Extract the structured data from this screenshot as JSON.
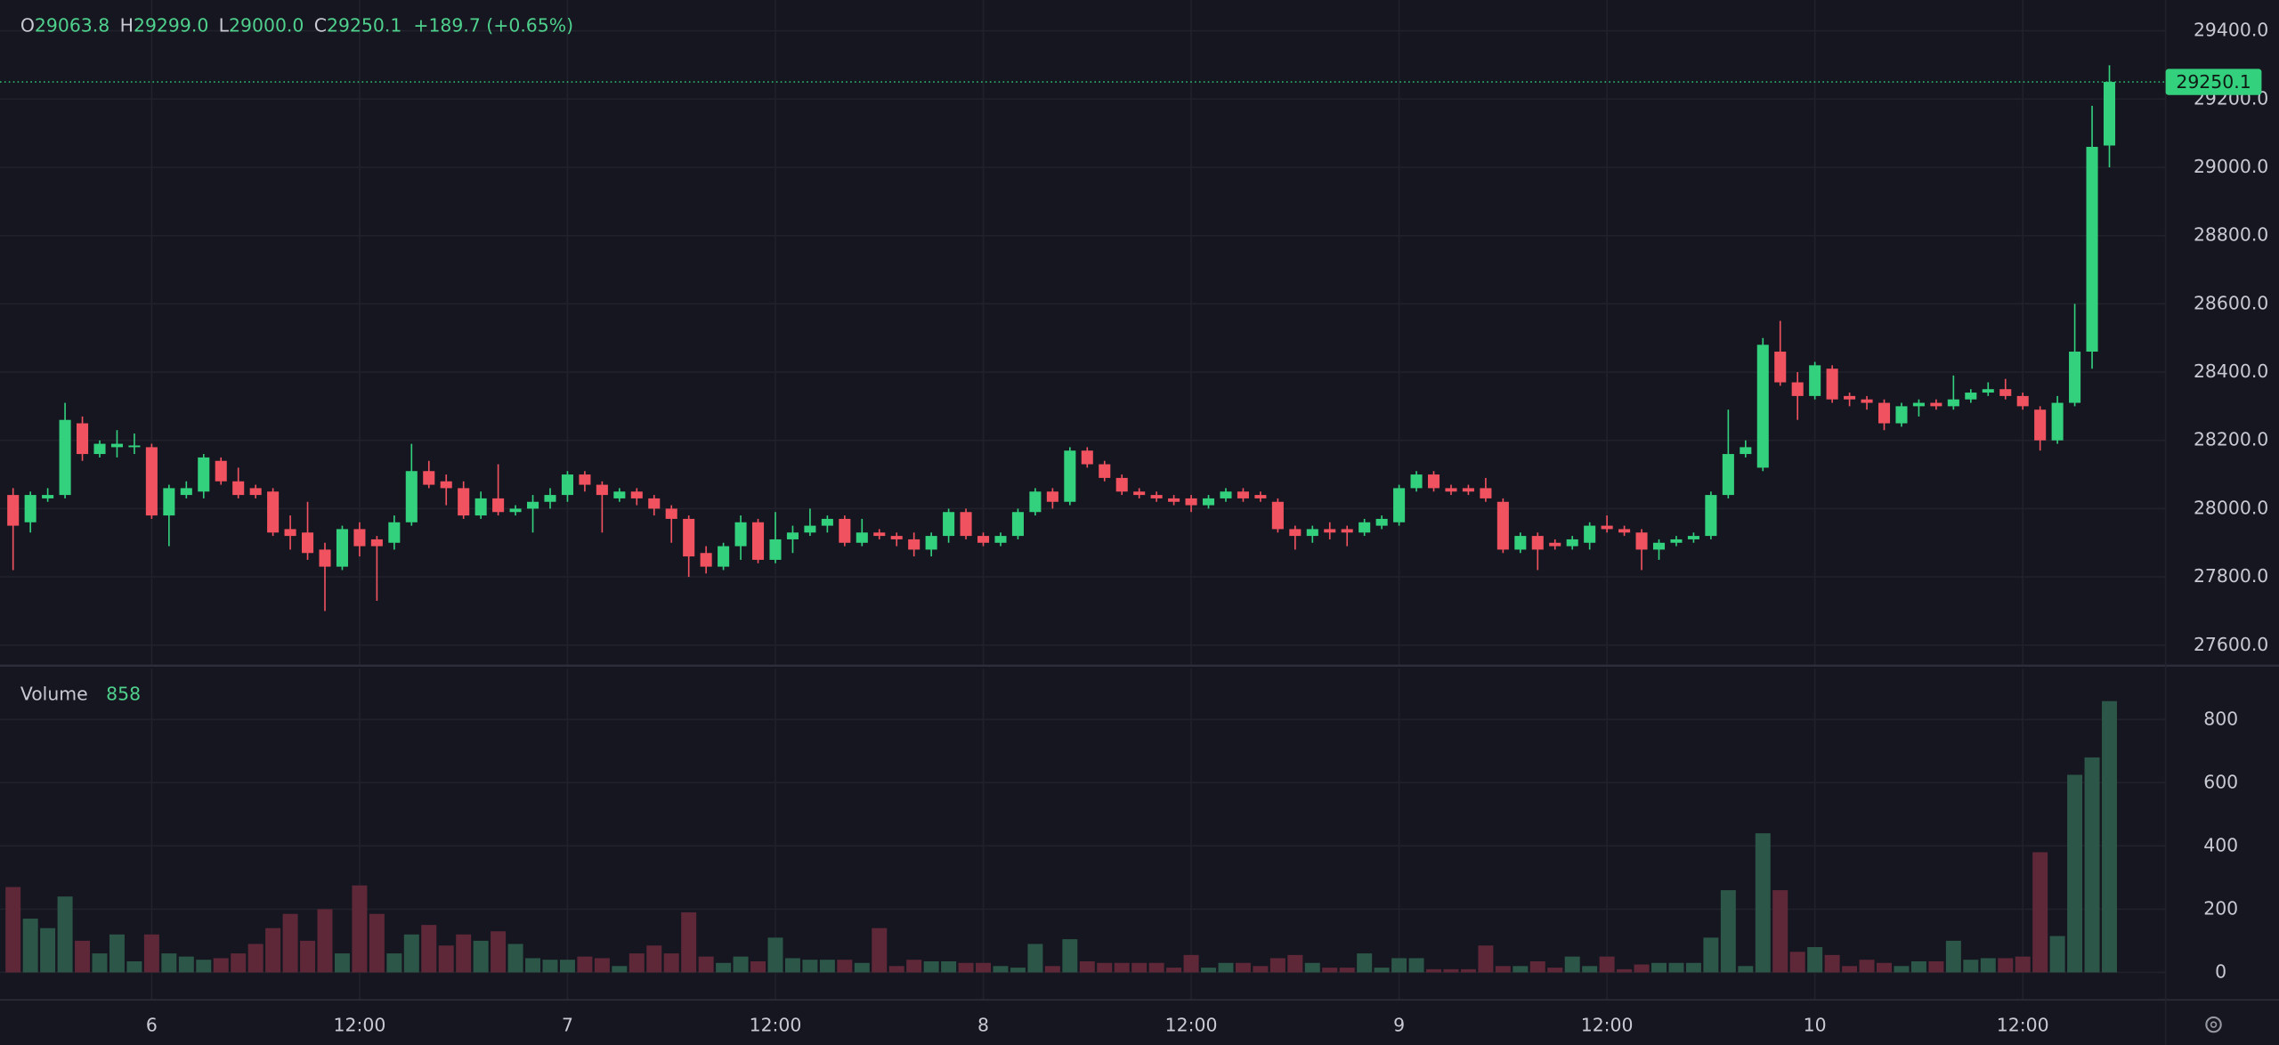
{
  "chart_data": {
    "type": "candlestick",
    "ohlc_labels": [
      "O",
      "H",
      "L",
      "C"
    ],
    "ohlc_values": [
      "29063.8",
      "29299.0",
      "29000.0",
      "29250.1"
    ],
    "change": "+189.7 (+0.65%)",
    "volume_title": "Volume",
    "up_color": "#33d17e",
    "down_color": "#f0525f",
    "volume_up_color": "#2c5647",
    "volume_down_color": "#5e2838",
    "grid": true,
    "categories": [
      null,
      null,
      null,
      null,
      null,
      null,
      null,
      null,
      "6",
      null,
      null,
      null,
      null,
      null,
      null,
      null,
      null,
      null,
      null,
      null,
      "12:00",
      null,
      null,
      null,
      null,
      null,
      null,
      null,
      null,
      null,
      null,
      null,
      "7",
      null,
      null,
      null,
      null,
      null,
      null,
      null,
      null,
      null,
      null,
      null,
      "12:00",
      null,
      null,
      null,
      null,
      null,
      null,
      null,
      null,
      null,
      null,
      null,
      "8",
      null,
      null,
      null,
      null,
      null,
      null,
      null,
      null,
      null,
      null,
      null,
      "12:00",
      null,
      null,
      null,
      null,
      null,
      null,
      null,
      null,
      null,
      null,
      null,
      "9",
      null,
      null,
      null,
      null,
      null,
      null,
      null,
      null,
      null,
      null,
      null,
      "12:00",
      null,
      null,
      null,
      null,
      null,
      null,
      null,
      null,
      null,
      null,
      null,
      "10",
      null,
      null,
      null,
      null,
      null,
      null,
      null,
      null,
      null,
      null,
      null,
      "12:00",
      null,
      null,
      null,
      null,
      null
    ],
    "open": [
      28040,
      27960,
      28030,
      28040,
      28250,
      28160,
      28180,
      28180,
      28180,
      27980,
      28040,
      28050,
      28140,
      28080,
      28060,
      28050,
      27940,
      27930,
      27880,
      27830,
      27940,
      27910,
      27900,
      27960,
      28110,
      28080,
      28060,
      27980,
      28030,
      27990,
      28000,
      28020,
      28040,
      28100,
      28070,
      28030,
      28050,
      28030,
      28000,
      27970,
      27870,
      27830,
      27890,
      27960,
      27850,
      27910,
      27930,
      27950,
      27970,
      27900,
      27930,
      27920,
      27910,
      27880,
      27920,
      27990,
      27920,
      27900,
      27920,
      27990,
      28050,
      28020,
      28170,
      28130,
      28090,
      28050,
      28040,
      28030,
      28030,
      28010,
      28030,
      28050,
      28040,
      28020,
      27940,
      27920,
      27940,
      27940,
      27930,
      27950,
      27960,
      28060,
      28100,
      28060,
      28060,
      28060,
      28020,
      27880,
      27920,
      27900,
      27890,
      27900,
      27950,
      27940,
      27930,
      27880,
      27900,
      27910,
      27920,
      28040,
      28160,
      28120,
      28460,
      28370,
      28330,
      28410,
      28330,
      28320,
      28310,
      28250,
      28300,
      28310,
      28300,
      28320,
      28340,
      28350,
      28330,
      28290,
      28200,
      28310,
      28460,
      29063.8
    ],
    "high": [
      28060,
      28050,
      28060,
      28310,
      28270,
      28200,
      28230,
      28220,
      28190,
      28070,
      28080,
      28160,
      28150,
      28120,
      28070,
      28060,
      27980,
      28020,
      27900,
      27950,
      27960,
      27920,
      27980,
      28190,
      28140,
      28100,
      28080,
      28050,
      28130,
      28010,
      28040,
      28060,
      28110,
      28110,
      28080,
      28060,
      28060,
      28040,
      28010,
      27980,
      27890,
      27900,
      27980,
      27970,
      27990,
      27950,
      28000,
      27980,
      27980,
      27970,
      27940,
      27930,
      27930,
      27930,
      28000,
      28000,
      27930,
      27930,
      28000,
      28060,
      28060,
      28180,
      28180,
      28140,
      28100,
      28060,
      28050,
      28040,
      28040,
      28040,
      28060,
      28060,
      28050,
      28030,
      27950,
      27950,
      27960,
      27950,
      27970,
      27980,
      28070,
      28110,
      28110,
      28070,
      28070,
      28090,
      28030,
      27930,
      27930,
      27910,
      27920,
      27960,
      27980,
      27950,
      27940,
      27910,
      27920,
      27930,
      28050,
      28290,
      28200,
      28500,
      28550,
      28400,
      28430,
      28420,
      28340,
      28330,
      28320,
      28310,
      28320,
      28320,
      28390,
      28350,
      28370,
      28380,
      28340,
      28300,
      28330,
      28600,
      29180,
      29299
    ],
    "low": [
      27820,
      27930,
      28020,
      28030,
      28140,
      28150,
      28150,
      28160,
      27970,
      27890,
      28030,
      28030,
      28070,
      28030,
      28030,
      27920,
      27880,
      27850,
      27700,
      27820,
      27860,
      27730,
      27880,
      27950,
      28060,
      28010,
      27970,
      27970,
      27980,
      27980,
      27930,
      28000,
      28020,
      28050,
      27930,
      28020,
      28010,
      27980,
      27900,
      27800,
      27810,
      27820,
      27850,
      27840,
      27840,
      27870,
      27920,
      27930,
      27890,
      27890,
      27910,
      27890,
      27860,
      27860,
      27900,
      27910,
      27890,
      27890,
      27910,
      27980,
      28000,
      28010,
      28120,
      28080,
      28040,
      28030,
      28020,
      28010,
      27990,
      28000,
      28020,
      28020,
      28020,
      27930,
      27880,
      27900,
      27910,
      27890,
      27920,
      27940,
      27950,
      28050,
      28050,
      28040,
      28040,
      28020,
      27870,
      27870,
      27820,
      27880,
      27880,
      27880,
      27930,
      27920,
      27820,
      27850,
      27890,
      27900,
      27910,
      28030,
      28150,
      28110,
      28360,
      28260,
      28320,
      28310,
      28300,
      28290,
      28230,
      28240,
      28270,
      28290,
      28290,
      28310,
      28330,
      28320,
      28290,
      28170,
      28190,
      28300,
      28410,
      29000
    ],
    "close": [
      27950,
      28040,
      28040,
      28260,
      28160,
      28190,
      28190,
      28185,
      27980,
      28060,
      28060,
      28150,
      28080,
      28040,
      28040,
      27930,
      27920,
      27870,
      27830,
      27940,
      27890,
      27890,
      27960,
      28110,
      28070,
      28060,
      27980,
      28030,
      27990,
      28000,
      28020,
      28040,
      28100,
      28070,
      28040,
      28050,
      28030,
      28000,
      27970,
      27860,
      27830,
      27890,
      27960,
      27850,
      27910,
      27930,
      27950,
      27970,
      27900,
      27930,
      27920,
      27910,
      27880,
      27920,
      27990,
      27920,
      27900,
      27920,
      27990,
      28050,
      28020,
      28170,
      28130,
      28090,
      28050,
      28040,
      28030,
      28020,
      28010,
      28030,
      28050,
      28030,
      28030,
      27940,
      27920,
      27940,
      27930,
      27930,
      27960,
      27970,
      28060,
      28100,
      28060,
      28050,
      28050,
      28030,
      27880,
      27920,
      27880,
      27890,
      27910,
      27950,
      27940,
      27930,
      27880,
      27900,
      27910,
      27920,
      28040,
      28160,
      28180,
      28480,
      28370,
      28330,
      28420,
      28320,
      28320,
      28310,
      28250,
      28300,
      28310,
      28300,
      28320,
      28340,
      28350,
      28330,
      28300,
      28200,
      28310,
      28460,
      29060,
      29250.1
    ],
    "volume": [
      270,
      170,
      140,
      240,
      100,
      60,
      120,
      35,
      120,
      60,
      50,
      40,
      45,
      60,
      90,
      140,
      185,
      100,
      200,
      60,
      275,
      185,
      60,
      120,
      150,
      85,
      120,
      100,
      130,
      90,
      45,
      40,
      40,
      50,
      45,
      20,
      60,
      85,
      60,
      190,
      50,
      30,
      50,
      35,
      110,
      45,
      40,
      40,
      40,
      30,
      140,
      20,
      40,
      35,
      35,
      30,
      30,
      20,
      15,
      90,
      20,
      105,
      35,
      30,
      30,
      30,
      30,
      15,
      55,
      15,
      30,
      30,
      20,
      45,
      55,
      30,
      15,
      15,
      60,
      15,
      45,
      45,
      10,
      10,
      10,
      85,
      20,
      20,
      35,
      15,
      50,
      20,
      50,
      10,
      25,
      30,
      30,
      30,
      110,
      260,
      20,
      440,
      260,
      65,
      80,
      55,
      20,
      40,
      30,
      20,
      35,
      35,
      100,
      40,
      45,
      45,
      50,
      380,
      115,
      625,
      680,
      858
    ],
    "ylim": [
      27540,
      29490
    ],
    "yticks": [
      {
        "value": 27600,
        "label": "27600.0"
      },
      {
        "value": 27800,
        "label": "27800.0"
      },
      {
        "value": 28000,
        "label": "28000.0"
      },
      {
        "value": 28200,
        "label": "28200.0"
      },
      {
        "value": 28400,
        "label": "28400.0"
      },
      {
        "value": 28600,
        "label": "28600.0"
      },
      {
        "value": 28800,
        "label": "28800.0"
      },
      {
        "value": 29000,
        "label": "29000.0"
      },
      {
        "value": 29200,
        "label": "29200.0"
      },
      {
        "value": 29400,
        "label": "29400.0"
      }
    ],
    "volume_ylim": [
      -87,
      961
    ],
    "volume_yticks": [
      0,
      200,
      400,
      600,
      800
    ]
  }
}
